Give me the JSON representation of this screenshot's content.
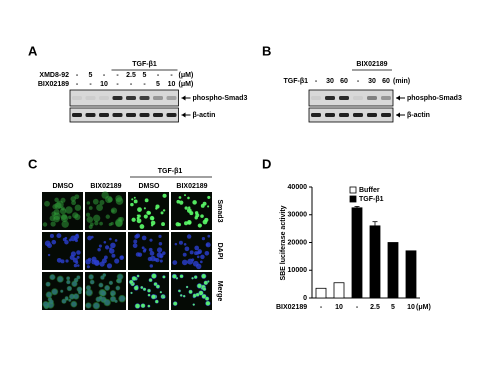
{
  "panel_a": {
    "panel_label": "A",
    "header": "TGF-β1",
    "rows": [
      {
        "label": "XMD8-92",
        "values": [
          "-",
          "5",
          "-",
          "-",
          "2.5",
          "5",
          "-",
          "-"
        ],
        "unit": "(μM)"
      },
      {
        "label": "BIX02189",
        "values": [
          "-",
          "-",
          "10",
          "-",
          "-",
          "-",
          "5",
          "10"
        ],
        "unit": "(μM)"
      }
    ],
    "bands": [
      "phospho-Smad3",
      "β-actin"
    ]
  },
  "panel_b": {
    "panel_label": "B",
    "header": "BIX02189",
    "rows": [
      {
        "label": "TGF-β1",
        "values": [
          "-",
          "30",
          "60",
          "-",
          "30",
          "60"
        ],
        "unit": "(min)"
      }
    ],
    "bands": [
      "phospho-Smad3",
      "β-actin"
    ]
  },
  "panel_c": {
    "panel_label": "C",
    "header": "TGF-β1",
    "columns": [
      "DMSO",
      "BIX02189",
      "DMSO",
      "BIX02189"
    ],
    "rows": [
      "Smad3",
      "DAPI",
      "Merge"
    ]
  },
  "chart_data": {
    "type": "bar",
    "panel_label": "D",
    "y_label": "SBE luciferase activity",
    "x_label": "BIX02189",
    "x_unit": "(μM)",
    "categories": [
      "-",
      "10",
      "-",
      "2.5",
      "5",
      "10"
    ],
    "series": [
      {
        "name": "Buffer",
        "color": "#ffffff",
        "values": [
          3500,
          5500,
          null,
          null,
          null,
          null
        ],
        "errors": [
          null,
          null,
          null,
          null,
          null,
          null
        ]
      },
      {
        "name": "TGF-β1",
        "color": "#000000",
        "values": [
          null,
          null,
          32500,
          26000,
          20000,
          17000
        ],
        "errors": [
          null,
          null,
          500,
          1500,
          null,
          null
        ]
      }
    ],
    "ylim": [
      0,
      40000
    ],
    "yticks": [
      0,
      10000,
      20000,
      30000,
      40000
    ],
    "legend": "top-right"
  }
}
